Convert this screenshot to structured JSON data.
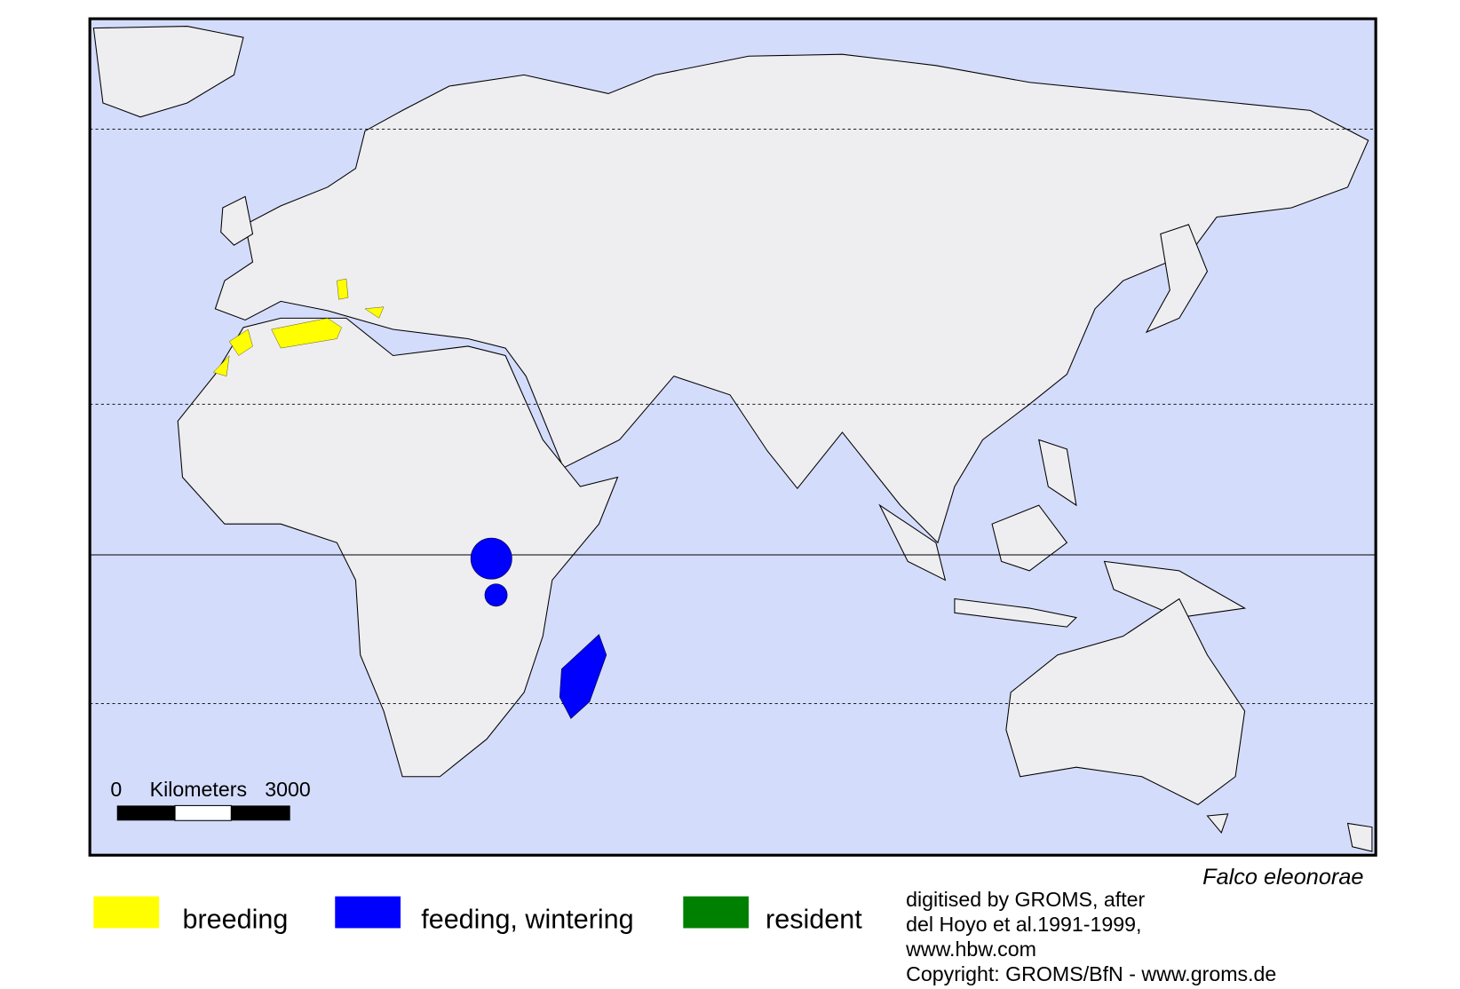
{
  "map": {
    "species": "Falco eleonorae",
    "scale_bar": {
      "start": "0",
      "unit": "Kilometers",
      "end": "3000"
    }
  },
  "legend": [
    {
      "label": "breeding",
      "color": "#ffff00"
    },
    {
      "label": "feeding, wintering",
      "color": "#0000ff"
    },
    {
      "label": "resident",
      "color": "#008000"
    }
  ],
  "credits": [
    "digitised by GROMS, after",
    "del Hoyo et al.1991-1999,",
    "www.hbw.com",
    "Copyright: GROMS/BfN - www.groms.de"
  ]
}
